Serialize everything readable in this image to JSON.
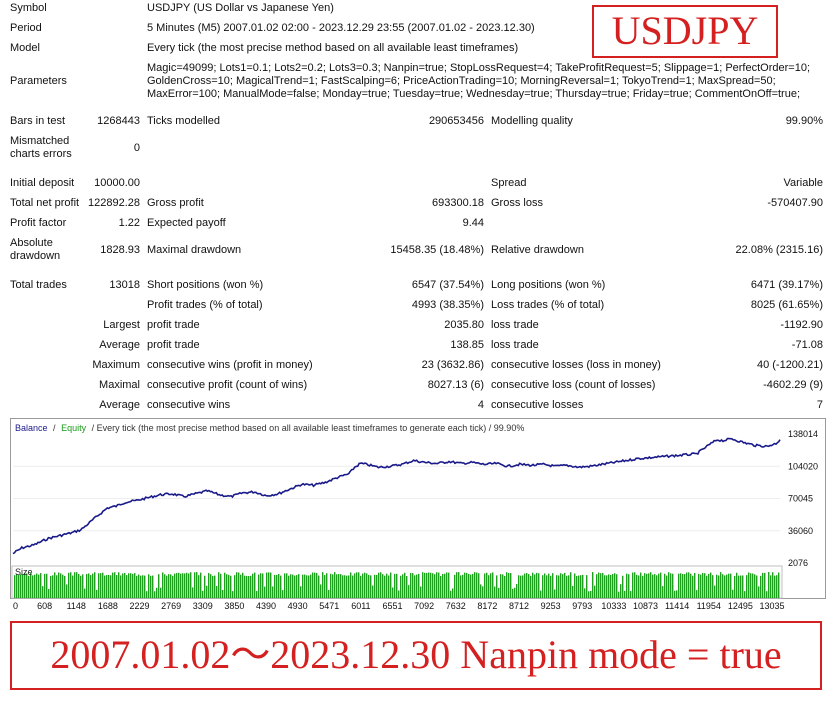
{
  "report": {
    "symbol": {
      "label": "Symbol",
      "value": "USDJPY (US Dollar vs Japanese Yen)"
    },
    "period": {
      "label": "Period",
      "value": "5 Minutes (M5) 2007.01.02 02:00 - 2023.12.29 23:55 (2007.01.02 - 2023.12.30)"
    },
    "model": {
      "label": "Model",
      "value": "Every tick (the most precise method based on all available least timeframes)"
    },
    "parameters": {
      "label": "Parameters",
      "lines": [
        "Magic=49099; Lots1=0.1; Lots2=0.2; Lots3=0.3; Nanpin=true; StopLossRequest=4; TakeProfitRequest=5; Slippage=1; PerfectOrder=10;",
        "GoldenCross=10; MagicalTrend=1; FastScalping=6; PriceActionTrading=10; MorningReversal=1; TokyoTrend=1; MaxSpread=50;",
        "MaxError=100; ManualMode=false; Monday=true; Tuesday=true; Wednesday=true; Thursday=true; Friday=true; CommentOnOff=true;"
      ]
    },
    "bars_in_test": {
      "label": "Bars in test",
      "value": "1268443"
    },
    "ticks_modelled": {
      "label": "Ticks modelled",
      "value": "290653456"
    },
    "modelling_quality": {
      "label": "Modelling quality",
      "value": "99.90%"
    },
    "mismatched": {
      "label_line1": "Mismatched",
      "label_line2": "charts errors",
      "value": "0"
    },
    "initial_deposit": {
      "label": "Initial deposit",
      "value": "10000.00"
    },
    "spread": {
      "label": "Spread",
      "value": "Variable"
    },
    "total_net_profit": {
      "label": "Total net profit",
      "value": "122892.28"
    },
    "gross_profit": {
      "label": "Gross profit",
      "value": "693300.18"
    },
    "gross_loss": {
      "label": "Gross loss",
      "value": "-570407.90"
    },
    "profit_factor": {
      "label": "Profit factor",
      "value": "1.22"
    },
    "expected_payoff": {
      "label": "Expected payoff",
      "value": "9.44"
    },
    "absolute_drawdown": {
      "label_line1": "Absolute",
      "label_line2": "drawdown",
      "value": "1828.93"
    },
    "maximal_drawdown": {
      "label": "Maximal drawdown",
      "value": "15458.35 (18.48%)"
    },
    "relative_drawdown": {
      "label": "Relative drawdown",
      "value": "22.08% (2315.16)"
    },
    "total_trades": {
      "label": "Total trades",
      "value": "13018"
    },
    "short_positions": {
      "label": "Short positions (won %)",
      "value": "6547 (37.54%)"
    },
    "long_positions": {
      "label": "Long positions (won %)",
      "value": "6471 (39.17%)"
    },
    "profit_trades": {
      "label": "Profit trades (% of total)",
      "value": "4993 (38.35%)"
    },
    "loss_trades": {
      "label": "Loss trades (% of total)",
      "value": "8025 (61.65%)"
    },
    "largest": {
      "label": "Largest",
      "profit_label": "profit trade",
      "profit_value": "2035.80",
      "loss_label": "loss trade",
      "loss_value": "-1192.90"
    },
    "average": {
      "label": "Average",
      "profit_label": "profit trade",
      "profit_value": "138.85",
      "loss_label": "loss trade",
      "loss_value": "-71.08"
    },
    "maximum": {
      "label": "Maximum",
      "profit_label": "consecutive wins (profit in money)",
      "profit_value": "23 (3632.86)",
      "loss_label": "consecutive losses (loss in money)",
      "loss_value": "40 (-1200.21)"
    },
    "maximal": {
      "label": "Maximal",
      "profit_label": "consecutive profit (count of wins)",
      "profit_value": "8027.13 (6)",
      "loss_label": "consecutive loss (count of losses)",
      "loss_value": "-4602.29 (9)"
    },
    "average_consecutive": {
      "label": "Average",
      "profit_label": "consecutive wins",
      "profit_value": "4",
      "loss_label": "consecutive losses",
      "loss_value": "7"
    }
  },
  "overlay": {
    "brand": "USDJPY",
    "caption": "2007.01.02～2023.12.30 Nanpin mode = true",
    "color": "#d42020"
  },
  "chart_data": {
    "type": "line",
    "header": {
      "balance": "Balance",
      "sep1": "/",
      "equity": "Equity",
      "rest": "/ Every tick (the most precise method based on all available least timeframes to generate each tick) / 99.90%"
    },
    "size_label": "Size",
    "yticks": [
      "138014",
      "104020",
      "70045",
      "36060",
      "2076"
    ],
    "ylim": [
      2076,
      138014
    ],
    "xticks": [
      "0",
      "608",
      "1148",
      "1688",
      "2229",
      "2769",
      "3309",
      "3850",
      "4390",
      "4930",
      "5471",
      "6011",
      "6551",
      "7092",
      "7632",
      "8172",
      "8712",
      "9253",
      "9793",
      "10333",
      "10873",
      "11414",
      "11954",
      "12495",
      "13035"
    ],
    "xlim": [
      0,
      13018
    ],
    "colors": {
      "balance": "#1a1a8a",
      "equity": "#1a9a1a",
      "volume": "#1ea01e"
    },
    "series": [
      {
        "name": "Balance",
        "x": [
          0,
          150,
          350,
          600,
          800,
          1000,
          1150,
          1250,
          1400,
          1600,
          1750,
          1900,
          2100,
          2300,
          2500,
          2700,
          2900,
          3100,
          3300,
          3500,
          3700,
          3900,
          4100,
          4300,
          4500,
          4700,
          4900,
          5100,
          5300,
          5500,
          5700,
          5800,
          5900,
          6000,
          6200,
          6400,
          6600,
          6800,
          7000,
          7200,
          7400,
          7600,
          7800,
          8000,
          8200,
          8400,
          8600,
          8800,
          9000,
          9200,
          9400,
          9600,
          9800,
          10000,
          10200,
          10400,
          10600,
          10800,
          11000,
          11200,
          11400,
          11600,
          11800,
          11950,
          12050,
          12200,
          12400,
          12600,
          12800,
          12950,
          13018
        ],
        "y": [
          12000,
          18000,
          21000,
          28000,
          31000,
          34000,
          37000,
          42000,
          50000,
          60000,
          62000,
          66000,
          68000,
          71000,
          74000,
          75000,
          72000,
          75000,
          78000,
          74000,
          72000,
          76000,
          77000,
          73000,
          75000,
          80000,
          85000,
          84000,
          87000,
          92000,
          96000,
          103000,
          107000,
          106000,
          103000,
          104000,
          106000,
          110000,
          108000,
          107000,
          109000,
          107000,
          108000,
          106000,
          107000,
          104000,
          106000,
          105000,
          106000,
          104000,
          105000,
          103000,
          104000,
          106000,
          108000,
          110000,
          112000,
          113000,
          114000,
          115000,
          116000,
          117000,
          126000,
          132000,
          131000,
          133000,
          129000,
          126000,
          125000,
          128000,
          132000
        ]
      }
    ]
  }
}
